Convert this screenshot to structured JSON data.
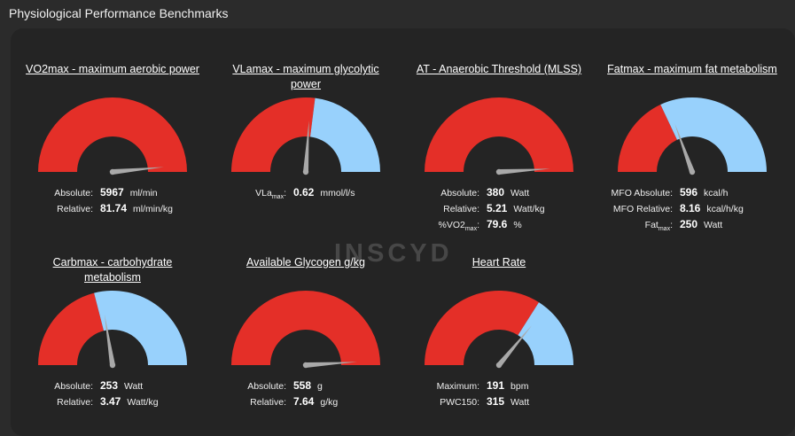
{
  "page": {
    "title": "Physiological Performance Benchmarks"
  },
  "watermark": "INSCYD",
  "colors": {
    "red": "#e42f28",
    "blue": "#98d1fc",
    "needle": "#a9a9a9"
  },
  "gauges": {
    "vo2max": {
      "title": "VO2max - maximum aerobic power",
      "red_fraction": 1.0,
      "needle_fraction": 0.97,
      "rows": [
        {
          "label": "Absolute:",
          "value": "5967",
          "unit": "ml/min"
        },
        {
          "label": "Relative:",
          "value": "81.74",
          "unit": "ml/min/kg"
        }
      ]
    },
    "vlamax": {
      "title": "VLamax - maximum glycolytic power",
      "red_fraction": 0.54,
      "needle_fraction": 0.52,
      "rows": [
        {
          "label": "VLa",
          "label_sub": "max",
          "label_suffix": ":",
          "value": "0.62",
          "unit": "mmol/l/s"
        }
      ]
    },
    "at": {
      "title": "AT - Anaerobic Threshold (MLSS)",
      "red_fraction": 1.0,
      "needle_fraction": 0.98,
      "rows": [
        {
          "label": "Absolute:",
          "value": "380",
          "unit": "Watt"
        },
        {
          "label": "Relative:",
          "value": "5.21",
          "unit": "Watt/kg"
        },
        {
          "label": "%VO2",
          "label_sub": "max",
          "label_suffix": ":",
          "value": "79.6",
          "unit": "%"
        }
      ]
    },
    "fatmax": {
      "title": "Fatmax - maximum fat metabolism",
      "red_fraction": 0.36,
      "needle_fraction": 0.39,
      "rows": [
        {
          "label": "MFO Absolute:",
          "value": "596",
          "unit": "kcal/h"
        },
        {
          "label": "MFO Relative:",
          "value": "8.16",
          "unit": "kcal/h/kg"
        },
        {
          "label": "Fat",
          "label_sub": "max",
          "label_suffix": ":",
          "value": "250",
          "unit": "Watt"
        }
      ]
    },
    "carbmax": {
      "title": "Carbmax - carbohydrate metabolism",
      "red_fraction": 0.42,
      "needle_fraction": 0.45,
      "rows": [
        {
          "label": "Absolute:",
          "value": "253",
          "unit": "Watt"
        },
        {
          "label": "Relative:",
          "value": "3.47",
          "unit": "Watt/kg"
        }
      ]
    },
    "glycogen": {
      "title": "Available Glycogen g/kg",
      "red_fraction": 1.0,
      "needle_fraction": 0.98,
      "rows": [
        {
          "label": "Absolute:",
          "value": "558",
          "unit": "g"
        },
        {
          "label": "Relative:",
          "value": "7.64",
          "unit": "g/kg"
        }
      ]
    },
    "heartrate": {
      "title": "Heart Rate",
      "red_fraction": 0.68,
      "needle_fraction": 0.72,
      "rows": [
        {
          "label": "Maximum:",
          "value": "191",
          "unit": "bpm"
        },
        {
          "label": "PWC150:",
          "value": "315",
          "unit": "Watt"
        }
      ]
    }
  }
}
